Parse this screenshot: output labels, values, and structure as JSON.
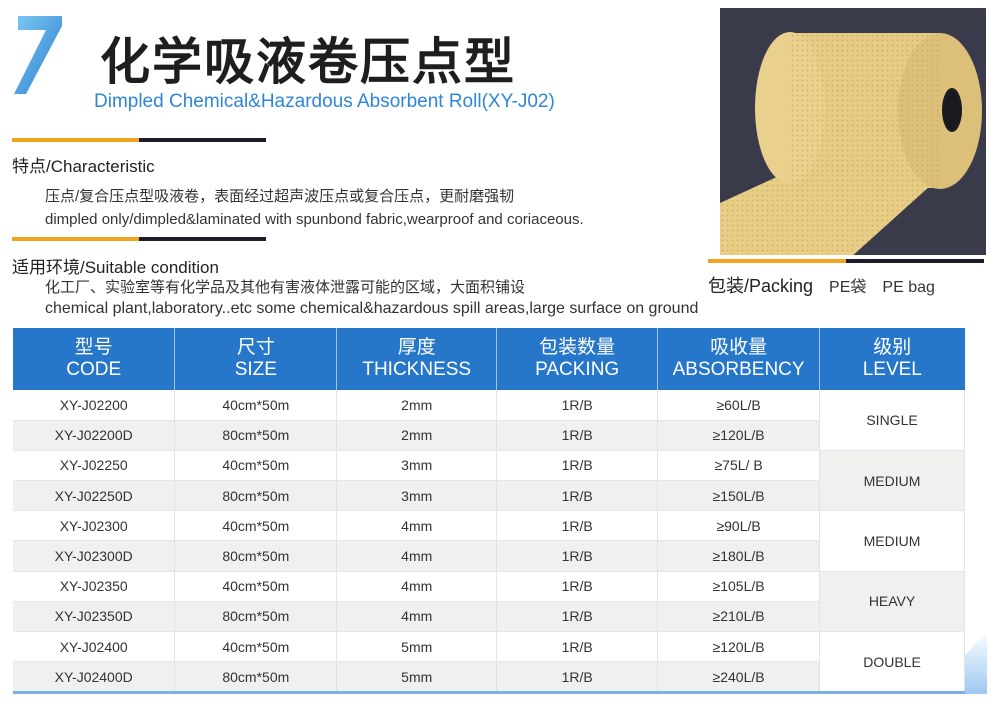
{
  "header": {
    "number": "7",
    "title": "化学吸液卷压点型",
    "subtitle": "Dimpled Chemical&Hazardous Absorbent Roll(XY-J02)",
    "accent_color": "#2d86d8"
  },
  "characteristic": {
    "heading": "特点/Characteristic",
    "line_cn": "压点/复合压点型吸液卷，表面经过超声波压点或复合压点，更耐磨强韧",
    "line_en": "dimpled only/dimpled&laminated with spunbond fabric,wearproof and coriaceous."
  },
  "suitable": {
    "heading": "适用环境/Suitable condition",
    "line_cn": "化工厂、实验室等有化学品及其他有害液体泄露可能的区域，大面积铺设",
    "line_en": "chemical plant,laboratory..etc some chemical&hazardous spill areas,large surface on ground"
  },
  "packing": {
    "heading": "包装/Packing",
    "value_cn": "PE袋",
    "value_en": "PE bag"
  },
  "table": {
    "header_color": "#2677c9",
    "columns": [
      {
        "cn": "型号",
        "en": "CODE"
      },
      {
        "cn": "尺寸",
        "en": "SIZE"
      },
      {
        "cn": "厚度",
        "en": "THICKNESS"
      },
      {
        "cn": "包装数量",
        "en": "PACKING"
      },
      {
        "cn": "吸收量",
        "en": "ABSORBENCY"
      },
      {
        "cn": "级别",
        "en": "LEVEL"
      }
    ],
    "rows": [
      {
        "code": "XY-J02200",
        "size": "40cm*50m",
        "thickness": "2mm",
        "packing": "1R/B",
        "absorbency": "≥60L/B"
      },
      {
        "code": "XY-J02200D",
        "size": "80cm*50m",
        "thickness": "2mm",
        "packing": "1R/B",
        "absorbency": "≥120L/B"
      },
      {
        "code": "XY-J02250",
        "size": "40cm*50m",
        "thickness": "3mm",
        "packing": "1R/B",
        "absorbency": "≥75L/ B"
      },
      {
        "code": "XY-J02250D",
        "size": "80cm*50m",
        "thickness": "3mm",
        "packing": "1R/B",
        "absorbency": "≥150L/B"
      },
      {
        "code": "XY-J02300",
        "size": "40cm*50m",
        "thickness": "4mm",
        "packing": "1R/B",
        "absorbency": "≥90L/B"
      },
      {
        "code": "XY-J02300D",
        "size": "80cm*50m",
        "thickness": "4mm",
        "packing": "1R/B",
        "absorbency": "≥180L/B"
      },
      {
        "code": "XY-J02350",
        "size": "40cm*50m",
        "thickness": "4mm",
        "packing": "1R/B",
        "absorbency": "≥105L/B"
      },
      {
        "code": "XY-J02350D",
        "size": "80cm*50m",
        "thickness": "4mm",
        "packing": "1R/B",
        "absorbency": "≥210L/B"
      },
      {
        "code": "XY-J02400",
        "size": "40cm*50m",
        "thickness": "5mm",
        "packing": "1R/B",
        "absorbency": "≥120L/B"
      },
      {
        "code": "XY-J02400D",
        "size": "80cm*50m",
        "thickness": "5mm",
        "packing": "1R/B",
        "absorbency": "≥240L/B"
      }
    ],
    "levels": [
      "SINGLE",
      "MEDIUM",
      "MEDIUM",
      "HEAVY",
      "DOUBLE"
    ]
  }
}
